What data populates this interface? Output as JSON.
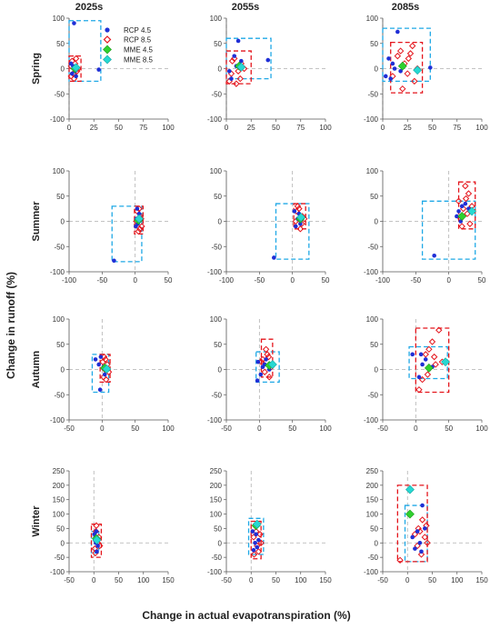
{
  "figure": {
    "columns": [
      "2025s",
      "2055s",
      "2085s"
    ],
    "xlabel": "Change in actual evapotranspiration (%)",
    "ylabel": "Change in runoff (%)"
  },
  "legend": {
    "placement": "inside top-right of Spring 2025s panel",
    "items": [
      {
        "label": "RCP 4.5",
        "marker": "filled-circle",
        "color": "#1f2fd6"
      },
      {
        "label": "RCP 8.5",
        "marker": "open-diamond",
        "color": "#e4141b"
      },
      {
        "label": "MME 4.5",
        "marker": "filled-diamond",
        "color": "#2fd12f"
      },
      {
        "label": "MME 8.5",
        "marker": "filled-diamond",
        "color": "#26d8d2"
      }
    ]
  },
  "colors": {
    "rcp45": "#1f2fd6",
    "rcp85": "#e4141b",
    "mme45": "#2fd12f",
    "mme85": "#26d8d2",
    "box85": "#e4141b",
    "box45": "#1ea8e6",
    "refline": "#b0b0b0"
  },
  "chart_data": [
    {
      "type": "scatter",
      "season": "Spring",
      "period": "2025s",
      "xlim": [
        0,
        100
      ],
      "ylim": [
        -100,
        100
      ],
      "xticks": [
        "0",
        "25",
        "50",
        "75",
        "100"
      ],
      "yticks": [
        "100",
        "50",
        "0",
        "-50",
        "-100"
      ],
      "rcp45": [
        [
          5,
          90
        ],
        [
          30,
          -2
        ],
        [
          4,
          5
        ],
        [
          6,
          -5
        ],
        [
          3,
          -10
        ],
        [
          8,
          2
        ],
        [
          2,
          10
        ],
        [
          7,
          -15
        ]
      ],
      "rcp85": [
        [
          2,
          5
        ],
        [
          4,
          -10
        ],
        [
          6,
          10
        ],
        [
          3,
          15
        ],
        [
          8,
          -5
        ],
        [
          5,
          -20
        ],
        [
          7,
          20
        ],
        [
          2,
          -15
        ],
        [
          9,
          0
        ]
      ],
      "mme45": [
        6,
        0
      ],
      "mme85": [
        7,
        2
      ],
      "box45": [
        0,
        32,
        -25,
        95
      ],
      "box85": [
        0,
        12,
        -25,
        25
      ]
    },
    {
      "type": "scatter",
      "season": "Spring",
      "period": "2055s",
      "xlim": [
        0,
        100
      ],
      "ylim": [
        -100,
        100
      ],
      "xticks": [
        "0",
        "25",
        "50",
        "75",
        "100"
      ],
      "yticks": [
        "100",
        "50",
        "0",
        "-50",
        "-100"
      ],
      "rcp45": [
        [
          12,
          55
        ],
        [
          42,
          17
        ],
        [
          5,
          -20
        ],
        [
          10,
          5
        ],
        [
          3,
          -5
        ],
        [
          15,
          15
        ],
        [
          8,
          25
        ]
      ],
      "rcp85": [
        [
          5,
          -10
        ],
        [
          10,
          -30
        ],
        [
          15,
          10
        ],
        [
          8,
          20
        ],
        [
          12,
          -5
        ],
        [
          18,
          0
        ],
        [
          6,
          15
        ],
        [
          14,
          -20
        ],
        [
          3,
          -25
        ]
      ],
      "mme45": [
        13,
        5
      ],
      "mme85": [
        15,
        3
      ],
      "box45": [
        0,
        45,
        -20,
        60
      ],
      "box85": [
        0,
        25,
        -30,
        35
      ]
    },
    {
      "type": "scatter",
      "season": "Spring",
      "period": "2085s",
      "xlim": [
        0,
        100
      ],
      "ylim": [
        -100,
        100
      ],
      "xticks": [
        "0",
        "25",
        "50",
        "75",
        "100"
      ],
      "yticks": [
        "100",
        "50",
        "0",
        "-50",
        "-100"
      ],
      "rcp45": [
        [
          15,
          73
        ],
        [
          48,
          2
        ],
        [
          3,
          -15
        ],
        [
          8,
          -20
        ],
        [
          10,
          10
        ],
        [
          12,
          0
        ],
        [
          20,
          5
        ],
        [
          18,
          -5
        ],
        [
          6,
          20
        ]
      ],
      "rcp85": [
        [
          20,
          -40
        ],
        [
          30,
          45
        ],
        [
          25,
          -10
        ],
        [
          15,
          25
        ],
        [
          35,
          0
        ],
        [
          28,
          30
        ],
        [
          22,
          10
        ],
        [
          10,
          -15
        ],
        [
          32,
          -25
        ],
        [
          18,
          35
        ],
        [
          26,
          20
        ]
      ],
      "mme45": [
        20,
        5
      ],
      "mme85": [
        35,
        -3
      ],
      "box45": [
        0,
        48,
        -25,
        80
      ],
      "box85": [
        8,
        40,
        -48,
        52
      ]
    },
    {
      "type": "scatter",
      "season": "Summer",
      "period": "2025s",
      "xlim": [
        -100,
        50
      ],
      "ylim": [
        -100,
        100
      ],
      "xticks": [
        "-100",
        "-50",
        "0",
        "50"
      ],
      "yticks": [
        "100",
        "50",
        "0",
        "-50",
        "-100"
      ],
      "rcp45": [
        [
          -32,
          -78
        ],
        [
          2,
          5
        ],
        [
          4,
          -5
        ],
        [
          6,
          15
        ],
        [
          3,
          25
        ],
        [
          1,
          -10
        ]
      ],
      "rcp85": [
        [
          5,
          -20
        ],
        [
          8,
          10
        ],
        [
          3,
          20
        ],
        [
          10,
          -10
        ],
        [
          6,
          25
        ],
        [
          2,
          0
        ],
        [
          7,
          -15
        ],
        [
          9,
          5
        ]
      ],
      "mme45": [
        5,
        2
      ],
      "mme85": [
        6,
        5
      ],
      "box45": [
        -35,
        10,
        -80,
        30
      ],
      "box85": [
        -1,
        12,
        -25,
        30
      ]
    },
    {
      "type": "scatter",
      "season": "Summer",
      "period": "2055s",
      "xlim": [
        -100,
        50
      ],
      "ylim": [
        -100,
        100
      ],
      "xticks": [
        "-100",
        "-50",
        "0",
        "50"
      ],
      "yticks": [
        "100",
        "50",
        "0",
        "-50",
        "-100"
      ],
      "rcp45": [
        [
          -28,
          -72
        ],
        [
          5,
          -10
        ],
        [
          8,
          5
        ],
        [
          10,
          15
        ],
        [
          3,
          20
        ],
        [
          12,
          -5
        ]
      ],
      "rcp85": [
        [
          10,
          25
        ],
        [
          15,
          10
        ],
        [
          5,
          0
        ],
        [
          12,
          -15
        ],
        [
          8,
          30
        ],
        [
          18,
          5
        ],
        [
          6,
          20
        ],
        [
          14,
          -5
        ]
      ],
      "mme45": [
        12,
        5
      ],
      "mme85": [
        13,
        8
      ],
      "box45": [
        -25,
        25,
        -75,
        35
      ],
      "box85": [
        2,
        20,
        -15,
        35
      ]
    },
    {
      "type": "scatter",
      "season": "Summer",
      "period": "2085s",
      "xlim": [
        -100,
        50
      ],
      "ylim": [
        -100,
        100
      ],
      "xticks": [
        "-100",
        "-50",
        "0",
        "50"
      ],
      "yticks": [
        "100",
        "50",
        "0",
        "-50",
        "-100"
      ],
      "rcp45": [
        [
          -22,
          -68
        ],
        [
          15,
          20
        ],
        [
          20,
          30
        ],
        [
          12,
          10
        ],
        [
          25,
          35
        ],
        [
          18,
          0
        ],
        [
          30,
          25
        ]
      ],
      "rcp85": [
        [
          20,
          -10
        ],
        [
          25,
          70
        ],
        [
          30,
          55
        ],
        [
          15,
          40
        ],
        [
          28,
          15
        ],
        [
          22,
          25
        ],
        [
          35,
          30
        ],
        [
          18,
          5
        ],
        [
          26,
          45
        ],
        [
          32,
          -5
        ]
      ],
      "mme45": [
        20,
        10
      ],
      "mme85": [
        35,
        20
      ],
      "box45": [
        -40,
        40,
        -75,
        40
      ],
      "box85": [
        15,
        40,
        -15,
        78
      ]
    },
    {
      "type": "scatter",
      "season": "Autumn",
      "period": "2025s",
      "xlim": [
        -50,
        100
      ],
      "ylim": [
        -100,
        100
      ],
      "xticks": [
        "-50",
        "0",
        "50",
        "100"
      ],
      "yticks": [
        "100",
        "50",
        "0",
        "-50",
        "-100"
      ],
      "rcp45": [
        [
          -3,
          -40
        ],
        [
          -10,
          20
        ],
        [
          2,
          5
        ],
        [
          -5,
          10
        ],
        [
          4,
          -10
        ],
        [
          -2,
          25
        ],
        [
          6,
          0
        ]
      ],
      "rcp85": [
        [
          5,
          20
        ],
        [
          2,
          -15
        ],
        [
          8,
          10
        ],
        [
          3,
          25
        ],
        [
          10,
          -5
        ],
        [
          1,
          15
        ],
        [
          6,
          -20
        ],
        [
          4,
          0
        ]
      ],
      "mme45": [
        4,
        3
      ],
      "mme85": [
        7,
        1
      ],
      "box45": [
        -15,
        10,
        -45,
        30
      ],
      "box85": [
        -3,
        12,
        -25,
        30
      ]
    },
    {
      "type": "scatter",
      "season": "Autumn",
      "period": "2055s",
      "xlim": [
        -50,
        100
      ],
      "ylim": [
        -100,
        100
      ],
      "xticks": [
        "-50",
        "0",
        "50",
        "100"
      ],
      "yticks": [
        "100",
        "50",
        "0",
        "-50",
        "-100"
      ],
      "rcp45": [
        [
          -3,
          -22
        ],
        [
          -2,
          15
        ],
        [
          5,
          5
        ],
        [
          10,
          20
        ],
        [
          2,
          -10
        ],
        [
          15,
          0
        ],
        [
          8,
          10
        ]
      ],
      "rcp85": [
        [
          10,
          40
        ],
        [
          15,
          -15
        ],
        [
          5,
          20
        ],
        [
          20,
          10
        ],
        [
          12,
          30
        ],
        [
          8,
          -5
        ],
        [
          18,
          5
        ],
        [
          14,
          25
        ],
        [
          3,
          15
        ]
      ],
      "mme45": [
        15,
        8
      ],
      "mme85": [
        20,
        10
      ],
      "box45": [
        -5,
        30,
        -25,
        35
      ],
      "box85": [
        3,
        20,
        -15,
        60
      ]
    },
    {
      "type": "scatter",
      "season": "Autumn",
      "period": "2085s",
      "xlim": [
        -50,
        100
      ],
      "ylim": [
        -100,
        100
      ],
      "xticks": [
        "-50",
        "0",
        "50",
        "100"
      ],
      "yticks": [
        "100",
        "50",
        "0",
        "-50",
        "-100"
      ],
      "rcp45": [
        [
          -5,
          30
        ],
        [
          5,
          -15
        ],
        [
          10,
          10
        ],
        [
          15,
          20
        ],
        [
          20,
          0
        ],
        [
          8,
          30
        ],
        [
          25,
          5
        ]
      ],
      "rcp85": [
        [
          5,
          -40
        ],
        [
          35,
          78
        ],
        [
          25,
          55
        ],
        [
          15,
          30
        ],
        [
          30,
          10
        ],
        [
          10,
          -20
        ],
        [
          20,
          40
        ],
        [
          40,
          15
        ],
        [
          18,
          -10
        ],
        [
          28,
          25
        ]
      ],
      "mme45": [
        20,
        3
      ],
      "mme85": [
        45,
        15
      ],
      "box45": [
        -10,
        48,
        -18,
        45
      ],
      "box85": [
        0,
        50,
        -45,
        82
      ]
    },
    {
      "type": "scatter",
      "season": "Winter",
      "period": "2025s",
      "xlim": [
        -50,
        150
      ],
      "ylim": [
        -100,
        250
      ],
      "xticks": [
        "-50",
        "0",
        "50",
        "100",
        "150"
      ],
      "yticks": [
        "250",
        "200",
        "150",
        "100",
        "50",
        "0",
        "-50",
        "-100"
      ],
      "rcp45": [
        [
          5,
          40
        ],
        [
          2,
          10
        ],
        [
          8,
          -10
        ],
        [
          3,
          20
        ],
        [
          6,
          -30
        ],
        [
          4,
          0
        ],
        [
          1,
          30
        ]
      ],
      "rcp85": [
        [
          5,
          60
        ],
        [
          10,
          20
        ],
        [
          2,
          -20
        ],
        [
          8,
          0
        ],
        [
          4,
          40
        ],
        [
          12,
          -10
        ],
        [
          6,
          10
        ],
        [
          3,
          -35
        ]
      ],
      "mme45": [
        5,
        15
      ],
      "mme85": [
        6,
        10
      ],
      "box45": [
        -5,
        10,
        -35,
        40
      ],
      "box85": [
        -5,
        15,
        -50,
        65
      ]
    },
    {
      "type": "scatter",
      "season": "Winter",
      "period": "2055s",
      "xlim": [
        -50,
        150
      ],
      "ylim": [
        -100,
        250
      ],
      "xticks": [
        "-50",
        "0",
        "50",
        "100",
        "150"
      ],
      "yticks": [
        "250",
        "200",
        "150",
        "100",
        "50",
        "0",
        "-50",
        "-100"
      ],
      "rcp45": [
        [
          5,
          -25
        ],
        [
          10,
          30
        ],
        [
          8,
          0
        ],
        [
          15,
          10
        ],
        [
          3,
          40
        ],
        [
          12,
          -15
        ]
      ],
      "rcp85": [
        [
          10,
          40
        ],
        [
          15,
          -30
        ],
        [
          5,
          20
        ],
        [
          20,
          0
        ],
        [
          8,
          60
        ],
        [
          12,
          -10
        ],
        [
          18,
          30
        ],
        [
          6,
          -40
        ]
      ],
      "mme45": [
        10,
        60
      ],
      "mme85": [
        12,
        65
      ],
      "box45": [
        -5,
        25,
        -40,
        85
      ],
      "box85": [
        0,
        20,
        -55,
        75
      ]
    },
    {
      "type": "scatter",
      "season": "Winter",
      "period": "2085s",
      "xlim": [
        -50,
        150
      ],
      "ylim": [
        -100,
        250
      ],
      "xticks": [
        "-50",
        "0",
        "50",
        "100",
        "150"
      ],
      "yticks": [
        "250",
        "200",
        "150",
        "100",
        "50",
        "0",
        "-50",
        "-100"
      ],
      "rcp45": [
        [
          30,
          130
        ],
        [
          15,
          -20
        ],
        [
          20,
          40
        ],
        [
          25,
          0
        ],
        [
          35,
          50
        ],
        [
          10,
          20
        ],
        [
          28,
          -30
        ]
      ],
      "rcp85": [
        [
          -15,
          -60
        ],
        [
          30,
          80
        ],
        [
          25,
          40
        ],
        [
          35,
          20
        ],
        [
          20,
          -10
        ],
        [
          38,
          60
        ],
        [
          15,
          30
        ],
        [
          28,
          -40
        ],
        [
          40,
          0
        ],
        [
          22,
          50
        ]
      ],
      "mme45": [
        5,
        100
      ],
      "mme85": [
        5,
        185
      ],
      "box45": [
        -5,
        40,
        -65,
        130
      ],
      "box85": [
        -20,
        40,
        -65,
        200
      ]
    }
  ]
}
